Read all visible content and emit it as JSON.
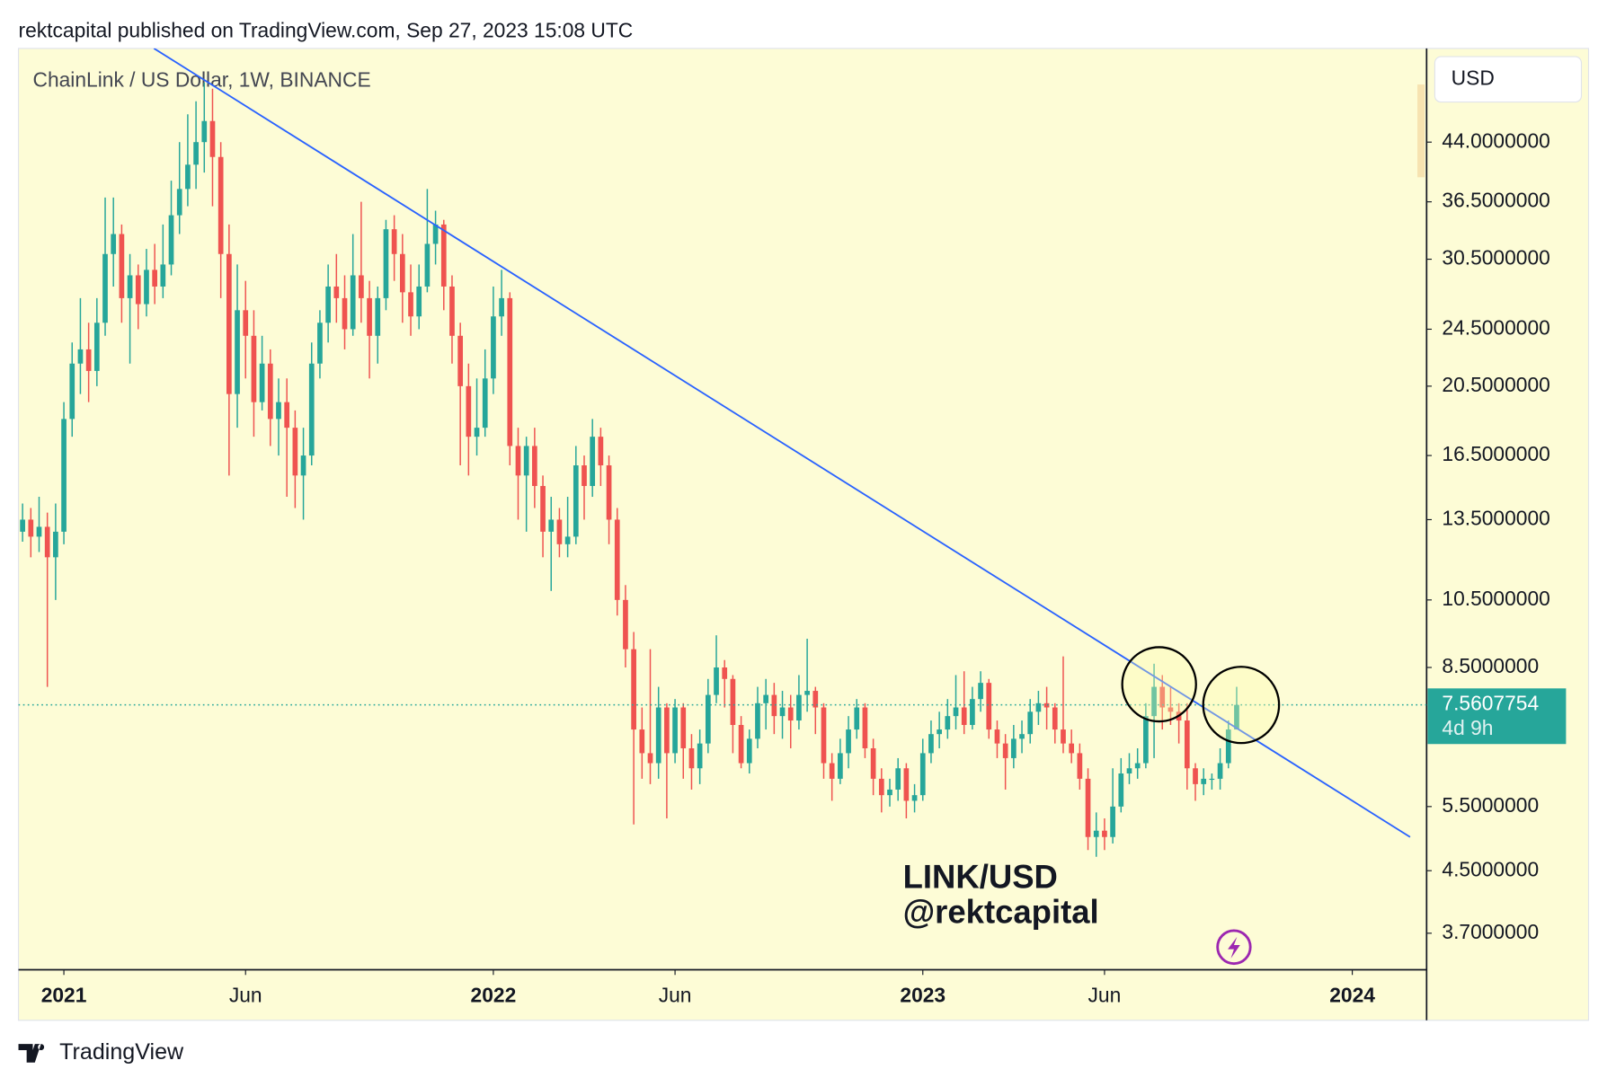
{
  "header": "rektcapital published on TradingView.com, Sep 27, 2023 15:08 UTC",
  "footer": "TradingView",
  "chart_data": {
    "type": "candlestick",
    "title": "ChainLink / US Dollar, 1W, BINANCE",
    "currency": "USD",
    "annotations": [
      "LINK/USD",
      "@rektcapital"
    ],
    "log_scale": true,
    "grid": false,
    "up_color": "#26a69a",
    "down_color": "#ef5350",
    "ylim": [
      3.3,
      58.8
    ],
    "yticks": [
      {
        "value": 44,
        "label": "44.0000000"
      },
      {
        "value": 36.5,
        "label": "36.5000000"
      },
      {
        "value": 30.5,
        "label": "30.5000000"
      },
      {
        "value": 24.5,
        "label": "24.5000000"
      },
      {
        "value": 20.5,
        "label": "20.5000000"
      },
      {
        "value": 16.5,
        "label": "16.5000000"
      },
      {
        "value": 13.5,
        "label": "13.5000000"
      },
      {
        "value": 10.5,
        "label": "10.5000000"
      },
      {
        "value": 8.5,
        "label": "8.5000000"
      },
      {
        "value": 5.5,
        "label": "5.5000000"
      },
      {
        "value": 4.5,
        "label": "4.5000000"
      },
      {
        "value": 3.7,
        "label": "3.7000000"
      }
    ],
    "xlim": [
      -0.5,
      170
    ],
    "xticks": [
      {
        "value": 5,
        "label": "2021"
      },
      {
        "value": 27,
        "label": "Jun"
      },
      {
        "value": 57,
        "label": "2022"
      },
      {
        "value": 79,
        "label": "Jun"
      },
      {
        "value": 109,
        "label": "2023"
      },
      {
        "value": 131,
        "label": "Jun"
      },
      {
        "value": 161,
        "label": "2024"
      }
    ],
    "last_price": 7.5607754,
    "countdown": "4d 9h",
    "trendline": {
      "color": "#2962ff",
      "x": [
        15.9,
        168
      ],
      "y": [
        59,
        5.0
      ]
    },
    "open": [
      13.0,
      13.5,
      12.8,
      13.2,
      12.0,
      13.0,
      18.5,
      22.0,
      23.0,
      21.5,
      25.0,
      31.0,
      33.0,
      27.0,
      29.0,
      26.5,
      29.5,
      28.0,
      30.0,
      35.0,
      38.0,
      41.0,
      44.0,
      47.0,
      42.0,
      31.0,
      20.0,
      26.0,
      24.0,
      19.5,
      22.0,
      18.5,
      19.5,
      18.0,
      15.5,
      16.5,
      22.0,
      25.0,
      28.0,
      27.0,
      24.5,
      29.0,
      27.0,
      24.0,
      27.0,
      33.5,
      31.0,
      27.5,
      25.5,
      28.0,
      32.0,
      34.0,
      28.0,
      24.0,
      20.5,
      17.5,
      18.0,
      21.0,
      25.5,
      27.0,
      17.0,
      15.5,
      17.0,
      15.0,
      13.0,
      13.5,
      12.5,
      12.8,
      16.0,
      15.0,
      17.5,
      16.0,
      13.5,
      10.5,
      9.0,
      7.0,
      6.5,
      6.3,
      7.5,
      6.5,
      7.5,
      6.6,
      6.2,
      6.7,
      7.8,
      8.5,
      8.2,
      7.1,
      6.3,
      6.8,
      7.6,
      7.8,
      7.3,
      7.5,
      7.2,
      7.8,
      7.9,
      7.5,
      6.3,
      6.0,
      6.5,
      7.0,
      7.5,
      6.6,
      6.0,
      5.7,
      5.8,
      6.2,
      5.6,
      5.7,
      6.5,
      6.9,
      7.0,
      7.3,
      7.5,
      7.1,
      7.7,
      8.1,
      7.0,
      6.7,
      6.4,
      6.8,
      6.9,
      7.4,
      7.6,
      7.5,
      7.0,
      6.7,
      6.5,
      6.0,
      5.0,
      5.1,
      5.0,
      5.5,
      6.1,
      6.2,
      6.3,
      7.3,
      8.0,
      7.5,
      7.4,
      7.2,
      6.2,
      5.9,
      6.0,
      6.0,
      6.3,
      7.0
    ],
    "high": [
      14.2,
      14.0,
      14.5,
      13.8,
      14.2,
      19.5,
      23.5,
      27.0,
      25.0,
      27.0,
      37.0,
      37.0,
      34.0,
      31.0,
      30.0,
      31.5,
      32.0,
      34.0,
      39.0,
      44.0,
      48.0,
      50.0,
      53.0,
      52.0,
      44.0,
      34.0,
      30.0,
      28.5,
      26.0,
      24.0,
      23.0,
      21.0,
      21.0,
      19.0,
      18.0,
      23.5,
      26.0,
      30.0,
      31.0,
      29.0,
      33.0,
      36.5,
      28.5,
      28.0,
      34.5,
      35.0,
      33.0,
      30.0,
      30.0,
      38.0,
      35.5,
      34.5,
      29.0,
      25.0,
      22.0,
      21.0,
      23.0,
      28.0,
      29.5,
      27.5,
      18.0,
      17.5,
      18.0,
      15.5,
      14.5,
      14.0,
      14.5,
      17.0,
      16.5,
      18.5,
      18.0,
      16.5,
      14.0,
      11.0,
      9.5,
      7.5,
      9.0,
      8.0,
      7.6,
      7.7,
      7.6,
      6.9,
      7.0,
      8.2,
      9.4,
      8.7,
      8.3,
      7.3,
      7.0,
      8.0,
      8.2,
      8.1,
      7.9,
      7.8,
      8.3,
      9.3,
      8.0,
      7.6,
      6.5,
      6.8,
      7.3,
      7.7,
      7.6,
      6.8,
      6.2,
      6.0,
      6.4,
      6.3,
      5.9,
      6.8,
      7.2,
      7.4,
      7.7,
      8.3,
      8.4,
      8.0,
      8.4,
      8.2,
      7.2,
      6.9,
      7.1,
      7.2,
      7.7,
      7.9,
      8.0,
      7.6,
      8.8,
      7.0,
      6.7,
      6.2,
      5.4,
      5.3,
      6.2,
      6.4,
      6.5,
      6.6,
      7.6,
      8.6,
      8.3,
      8.0,
      7.6,
      7.6,
      6.3,
      6.2,
      6.1,
      6.6,
      7.2,
      8.0
    ],
    "low": [
      12.6,
      12.0,
      12.2,
      8.0,
      10.5,
      12.5,
      17.5,
      20.0,
      19.5,
      20.5,
      24.0,
      28.0,
      25.0,
      22.0,
      24.5,
      25.5,
      26.5,
      27.0,
      29.0,
      33.0,
      36.0,
      38.0,
      40.0,
      36.0,
      27.0,
      15.5,
      18.0,
      21.0,
      17.5,
      19.0,
      17.0,
      16.5,
      14.5,
      14.0,
      13.5,
      16.0,
      21.0,
      23.5,
      25.0,
      23.0,
      24.0,
      25.0,
      21.0,
      22.0,
      26.0,
      28.5,
      25.0,
      24.0,
      24.5,
      27.5,
      30.0,
      26.0,
      22.0,
      16.0,
      15.5,
      16.5,
      17.5,
      20.0,
      24.0,
      16.0,
      13.5,
      13.0,
      14.0,
      12.0,
      10.8,
      12.0,
      12.0,
      12.5,
      13.5,
      14.5,
      15.0,
      12.5,
      10.0,
      8.5,
      5.2,
      6.0,
      5.9,
      6.0,
      5.3,
      6.3,
      6.0,
      5.8,
      5.9,
      6.5,
      7.6,
      7.5,
      6.5,
      6.2,
      6.1,
      6.6,
      7.0,
      6.9,
      6.8,
      6.6,
      7.0,
      7.4,
      6.9,
      6.0,
      5.6,
      5.9,
      6.2,
      6.8,
      6.4,
      5.7,
      5.4,
      5.5,
      5.6,
      5.3,
      5.4,
      5.6,
      6.3,
      6.6,
      6.8,
      7.0,
      6.9,
      7.0,
      7.4,
      6.8,
      6.4,
      5.8,
      6.2,
      6.5,
      6.7,
      7.1,
      7.0,
      6.7,
      6.5,
      6.3,
      5.8,
      4.8,
      4.7,
      4.8,
      4.9,
      5.4,
      5.9,
      6.0,
      6.2,
      6.4,
      7.0,
      7.1,
      6.7,
      5.8,
      5.6,
      5.7,
      5.8,
      5.8,
      6.2,
      7.0
    ],
    "close": [
      13.5,
      12.8,
      13.2,
      12.0,
      13.0,
      18.5,
      22.0,
      23.0,
      21.5,
      25.0,
      31.0,
      33.0,
      27.0,
      29.0,
      26.5,
      29.5,
      28.0,
      30.0,
      35.0,
      38.0,
      41.0,
      44.0,
      47.0,
      42.0,
      31.0,
      20.0,
      26.0,
      24.0,
      19.5,
      22.0,
      18.5,
      19.5,
      18.0,
      15.5,
      16.5,
      22.0,
      25.0,
      28.0,
      27.0,
      24.5,
      29.0,
      27.0,
      24.0,
      27.0,
      33.5,
      31.0,
      27.5,
      25.5,
      28.0,
      32.0,
      34.0,
      28.0,
      24.0,
      20.5,
      17.5,
      18.0,
      21.0,
      25.5,
      27.0,
      17.0,
      15.5,
      17.0,
      15.0,
      13.0,
      13.5,
      12.5,
      12.8,
      16.0,
      15.0,
      17.5,
      16.0,
      13.5,
      10.5,
      9.0,
      7.0,
      6.5,
      6.3,
      7.5,
      6.5,
      7.5,
      6.6,
      6.2,
      6.7,
      7.8,
      8.5,
      8.2,
      7.1,
      6.3,
      6.8,
      7.6,
      7.8,
      7.3,
      7.5,
      7.2,
      7.8,
      7.9,
      7.5,
      6.3,
      6.0,
      6.5,
      7.0,
      7.5,
      6.6,
      6.0,
      5.7,
      5.8,
      6.2,
      5.6,
      5.7,
      6.5,
      6.9,
      7.0,
      7.3,
      7.5,
      7.1,
      7.7,
      8.1,
      7.0,
      6.7,
      6.4,
      6.8,
      6.9,
      7.4,
      7.6,
      7.5,
      7.0,
      6.7,
      6.5,
      6.0,
      5.0,
      5.1,
      5.0,
      5.5,
      6.1,
      6.2,
      6.3,
      7.3,
      8.0,
      7.5,
      7.4,
      7.2,
      6.2,
      5.9,
      6.0,
      6.0,
      6.3,
      7.0,
      7.5607754
    ]
  }
}
